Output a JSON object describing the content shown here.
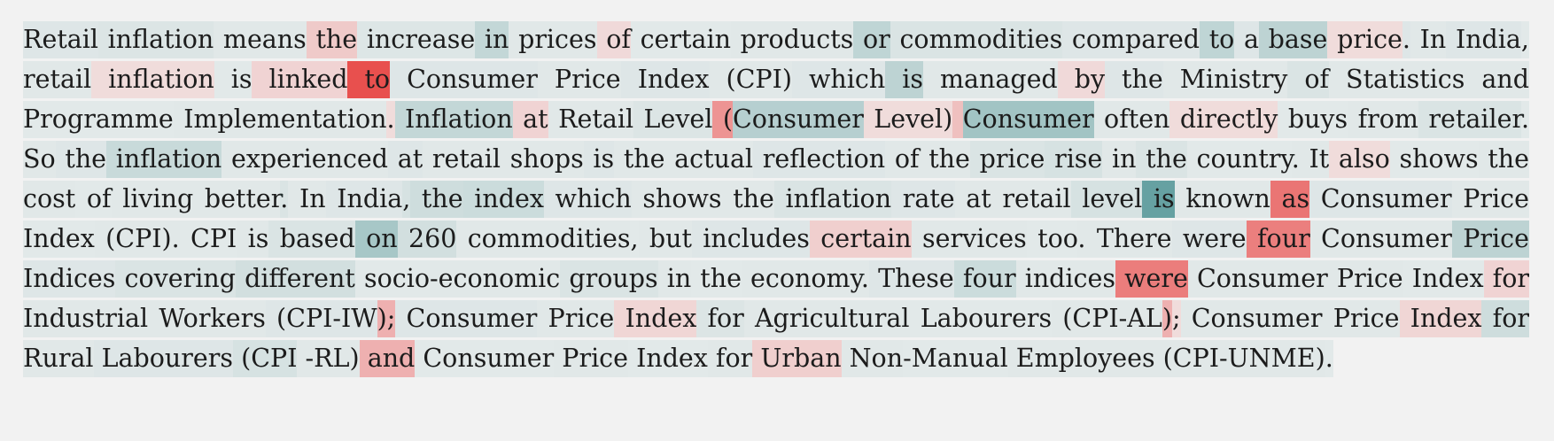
{
  "passage": {
    "text": "Retail inflation means the increase in prices of certain products or commodities compared to a base price. In India, retail inflation is linked to Consumer Price Index (CPI) which is managed by the Ministry of Statistics and Programme Implementation. Inflation at Retail Level (Consumer Level) Consumer often directly buys from retailer. So the inflation experienced at retail shops is the actual reflection of the price rise in the country. It also shows the cost of living better. In India, the index which shows the inflation rate at retail level is known as Consumer Price Index (CPI). CPI is based on 260 commodities, but includes certain services too. There were four Consumer Price Indices covering different socio-economic groups in the economy. These four indices were Consumer Price Index for Industrial Workers (CPI-IW); Consumer Price Index for Agricultural Labourers (CPI-AL); Consumer Price Index for Rural Labourers (CPI -RL) and Consumer Price Index for Urban Non-Manual Employees (CPI-UNME).",
    "colors": {
      "negative_strong": "#e8504e",
      "positive_strong": "#5b9a9a",
      "background": "#f2f2f2"
    },
    "tokens": [
      {
        "t": "Retail",
        "s": 0.06
      },
      {
        "t": " inflation",
        "s": 0.08
      },
      {
        "t": " means",
        "s": 0.05
      },
      {
        "t": " the",
        "s": -0.18
      },
      {
        "t": " increase",
        "s": 0.07
      },
      {
        "t": " in",
        "s": 0.25
      },
      {
        "t": " prices",
        "s": 0.05
      },
      {
        "t": " of",
        "s": -0.08
      },
      {
        "t": " certain",
        "s": 0.04
      },
      {
        "t": " products",
        "s": 0.05
      },
      {
        "t": " or",
        "s": 0.28
      },
      {
        "t": " commodities",
        "s": 0.1
      },
      {
        "t": " compared",
        "s": 0.06
      },
      {
        "t": " to",
        "s": 0.28
      },
      {
        "t": " a",
        "s": 0.06
      },
      {
        "t": " base",
        "s": 0.3
      },
      {
        "t": " price",
        "s": -0.06
      },
      {
        "t": ".",
        "s": 0.06
      },
      {
        "t": " In",
        "s": 0.05
      },
      {
        "t": " India",
        "s": 0.06
      },
      {
        "t": ",",
        "s": 0.04
      },
      {
        "t": " retail",
        "s": 0.05
      },
      {
        "t": " inflation",
        "s": -0.06
      },
      {
        "t": " is",
        "s": 0.04
      },
      {
        "t": " linked",
        "s": -0.12
      },
      {
        "t": " to",
        "s": -1.0
      },
      {
        "t": " Consumer",
        "s": 0.06
      },
      {
        "t": " Price",
        "s": 0.05
      },
      {
        "t": " Index",
        "s": 0.06
      },
      {
        "t": " (CPI)",
        "s": 0.05
      },
      {
        "t": " which",
        "s": 0.06
      },
      {
        "t": " is",
        "s": 0.3
      },
      {
        "t": " managed",
        "s": 0.05
      },
      {
        "t": " by",
        "s": -0.08
      },
      {
        "t": " the",
        "s": 0.06
      },
      {
        "t": " Ministry",
        "s": 0.05
      },
      {
        "t": " of",
        "s": 0.1
      },
      {
        "t": " Statistics",
        "s": 0.05
      },
      {
        "t": " and",
        "s": 0.05
      },
      {
        "t": " Programme",
        "s": 0.04
      },
      {
        "t": " Implementation",
        "s": 0.05
      },
      {
        "t": ".",
        "s": -0.06
      },
      {
        "t": " Inflation",
        "s": 0.25
      },
      {
        "t": " at",
        "s": -0.12
      },
      {
        "t": " Retail",
        "s": 0.05
      },
      {
        "t": " Level",
        "s": 0.08
      },
      {
        "t": " (",
        "s": -0.55
      },
      {
        "t": "Consumer",
        "s": 0.35
      },
      {
        "t": " Level)",
        "s": -0.06
      },
      {
        "t": " ",
        "s": -0.25
      },
      {
        "t": "Consumer",
        "s": 0.48
      },
      {
        "t": " often",
        "s": 0.05
      },
      {
        "t": " directly",
        "s": -0.06
      },
      {
        "t": " buys",
        "s": 0.04
      },
      {
        "t": " from",
        "s": 0.05
      },
      {
        "t": " retailer",
        "s": 0.1
      },
      {
        "t": ".",
        "s": 0.04
      },
      {
        "t": " So",
        "s": 0.05
      },
      {
        "t": " the",
        "s": 0.06
      },
      {
        "t": " inflation",
        "s": 0.22
      },
      {
        "t": " experienced",
        "s": 0.05
      },
      {
        "t": " at",
        "s": 0.06
      },
      {
        "t": " retail",
        "s": 0.05
      },
      {
        "t": " shops",
        "s": 0.05
      },
      {
        "t": " is",
        "s": 0.06
      },
      {
        "t": " the",
        "s": 0.05
      },
      {
        "t": " actual",
        "s": 0.05
      },
      {
        "t": " reflection",
        "s": 0.06
      },
      {
        "t": " of",
        "s": 0.05
      },
      {
        "t": " the",
        "s": 0.05
      },
      {
        "t": " price",
        "s": 0.1
      },
      {
        "t": " rise",
        "s": 0.12
      },
      {
        "t": " in",
        "s": 0.05
      },
      {
        "t": " the",
        "s": 0.1
      },
      {
        "t": " country",
        "s": 0.04
      },
      {
        "t": ".",
        "s": 0.05
      },
      {
        "t": " It",
        "s": 0.05
      },
      {
        "t": " also",
        "s": -0.06
      },
      {
        "t": " shows",
        "s": 0.04
      },
      {
        "t": " the",
        "s": 0.05
      },
      {
        "t": " cost",
        "s": 0.05
      },
      {
        "t": " of",
        "s": 0.04
      },
      {
        "t": " living",
        "s": 0.05
      },
      {
        "t": " better",
        "s": 0.05
      },
      {
        "t": ".",
        "s": 0.1
      },
      {
        "t": " In",
        "s": 0.05
      },
      {
        "t": " India",
        "s": 0.06
      },
      {
        "t": ",",
        "s": 0.12
      },
      {
        "t": " the",
        "s": 0.18
      },
      {
        "t": " index",
        "s": 0.2
      },
      {
        "t": " which",
        "s": 0.06
      },
      {
        "t": " shows",
        "s": 0.05
      },
      {
        "t": " the",
        "s": 0.05
      },
      {
        "t": " inflation",
        "s": 0.1
      },
      {
        "t": " rate",
        "s": 0.06
      },
      {
        "t": " at",
        "s": 0.05
      },
      {
        "t": " retail",
        "s": 0.05
      },
      {
        "t": " level",
        "s": 0.12
      },
      {
        "t": " is",
        "s": 0.9
      },
      {
        "t": " known",
        "s": 0.05
      },
      {
        "t": " as",
        "s": -0.75
      },
      {
        "t": " Consumer",
        "s": 0.06
      },
      {
        "t": " Price",
        "s": 0.05
      },
      {
        "t": " Index",
        "s": 0.04
      },
      {
        "t": " (CPI)",
        "s": 0.05
      },
      {
        "t": ".",
        "s": 0.05
      },
      {
        "t": " CPI",
        "s": 0.04
      },
      {
        "t": " is",
        "s": 0.05
      },
      {
        "t": " based",
        "s": 0.1
      },
      {
        "t": " on",
        "s": 0.45
      },
      {
        "t": " 260",
        "s": 0.15
      },
      {
        "t": " commodities",
        "s": 0.05
      },
      {
        "t": ",",
        "s": 0.04
      },
      {
        "t": " but",
        "s": 0.05
      },
      {
        "t": " includes",
        "s": 0.06
      },
      {
        "t": " certain",
        "s": -0.15
      },
      {
        "t": " services",
        "s": 0.05
      },
      {
        "t": " too",
        "s": 0.04
      },
      {
        "t": ".",
        "s": 0.05
      },
      {
        "t": " There",
        "s": 0.05
      },
      {
        "t": " were",
        "s": 0.06
      },
      {
        "t": " four",
        "s": -0.68
      },
      {
        "t": " Consumer",
        "s": 0.05
      },
      {
        "t": " Price",
        "s": 0.3
      },
      {
        "t": " Indices",
        "s": 0.06
      },
      {
        "t": " covering",
        "s": 0.1
      },
      {
        "t": " different",
        "s": 0.15
      },
      {
        "t": " socio",
        "s": 0.04
      },
      {
        "t": "-economic",
        "s": 0.05
      },
      {
        "t": " groups",
        "s": 0.1
      },
      {
        "t": " in",
        "s": 0.05
      },
      {
        "t": " the",
        "s": 0.04
      },
      {
        "t": " economy",
        "s": 0.05
      },
      {
        "t": ".",
        "s": 0.05
      },
      {
        "t": " These",
        "s": 0.06
      },
      {
        "t": " four",
        "s": 0.2
      },
      {
        "t": " indices",
        "s": 0.05
      },
      {
        "t": " were",
        "s": -0.7
      },
      {
        "t": " Consumer",
        "s": 0.05
      },
      {
        "t": " Price",
        "s": 0.05
      },
      {
        "t": " Index",
        "s": 0.04
      },
      {
        "t": " for",
        "s": -0.12
      },
      {
        "t": " Industrial",
        "s": 0.05
      },
      {
        "t": " Workers",
        "s": 0.05
      },
      {
        "t": " (CPI-IW",
        "s": 0.06
      },
      {
        "t": ");",
        "s": -0.35
      },
      {
        "t": " Consumer",
        "s": 0.06
      },
      {
        "t": " Price",
        "s": 0.05
      },
      {
        "t": " Index",
        "s": -0.1
      },
      {
        "t": " for",
        "s": 0.08
      },
      {
        "t": " Agricultural",
        "s": 0.05
      },
      {
        "t": " Labourers",
        "s": 0.04
      },
      {
        "t": " (CPI-AL",
        "s": 0.05
      },
      {
        "t": ")",
        "s": -0.35
      },
      {
        "t": ";",
        "s": -0.06
      },
      {
        "t": " Consumer",
        "s": 0.05
      },
      {
        "t": " Price",
        "s": 0.05
      },
      {
        "t": " Index",
        "s": -0.1
      },
      {
        "t": " for",
        "s": 0.18
      },
      {
        "t": " Rural",
        "s": 0.05
      },
      {
        "t": " Labourers",
        "s": 0.06
      },
      {
        "t": " (CPI",
        "s": 0.12
      },
      {
        "t": " -RL)",
        "s": 0.05
      },
      {
        "t": " and",
        "s": -0.35
      },
      {
        "t": " Consumer",
        "s": 0.04
      },
      {
        "t": " Price",
        "s": 0.05
      },
      {
        "t": " Index",
        "s": 0.04
      },
      {
        "t": " for",
        "s": 0.05
      },
      {
        "t": " Urban",
        "s": -0.15
      },
      {
        "t": " Non",
        "s": 0.05
      },
      {
        "t": "-Manual",
        "s": 0.04
      },
      {
        "t": " Employees",
        "s": 0.05
      },
      {
        "t": " (CPI-UNME)",
        "s": 0.05
      },
      {
        "t": ".",
        "s": 0.04
      }
    ]
  }
}
